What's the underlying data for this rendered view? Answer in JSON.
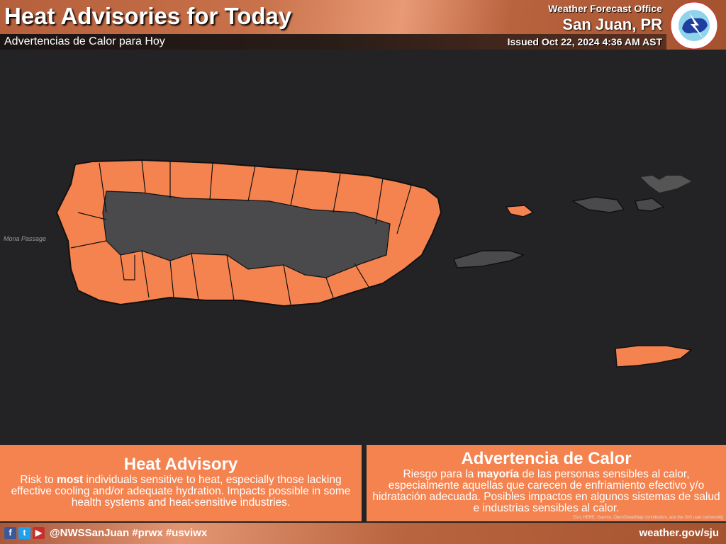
{
  "header": {
    "title": "Heat Advisories for Today",
    "subtitle": "Advertencias de Calor para Hoy",
    "office_label": "Weather Forecast Office",
    "office": "San Juan, PR",
    "issued": "Issued Oct 22, 2024 4:36 AM AST",
    "logo_text": "NATIONAL WEATHER SERVICE"
  },
  "map": {
    "label_mona": "Mona Passage",
    "advisory_color": "#f5834f",
    "no_advisory_color": "#4a4a4c",
    "background": "#232225"
  },
  "panels": [
    {
      "title": "Heat Advisory",
      "text_pre": "Risk to ",
      "text_bold": "most",
      "text_post": " individuals sensitive to heat, especially those lacking effective cooling and/or adequate hydration. Impacts possible in some health systems and heat-sensitive industries."
    },
    {
      "title": "Advertencia de Calor",
      "text_pre": "Riesgo para la ",
      "text_bold": "mayoría",
      "text_post": " de las personas sensibles al calor, especialmente aquellas que carecen de enfriamiento efectivo y/o hidratación adecuada. Posibles impactos en algunos sistemas de salud e industrias sensibles al calor."
    }
  ],
  "attribution": "Esri, HERE, Garmin, OpenStreetMap contributors, and the GIS user community",
  "footer": {
    "handle": "@NWSSanJuan #prwx #usviwx",
    "url": "weather.gov/sju",
    "icons": [
      "facebook-icon",
      "twitter-icon",
      "youtube-icon"
    ]
  }
}
